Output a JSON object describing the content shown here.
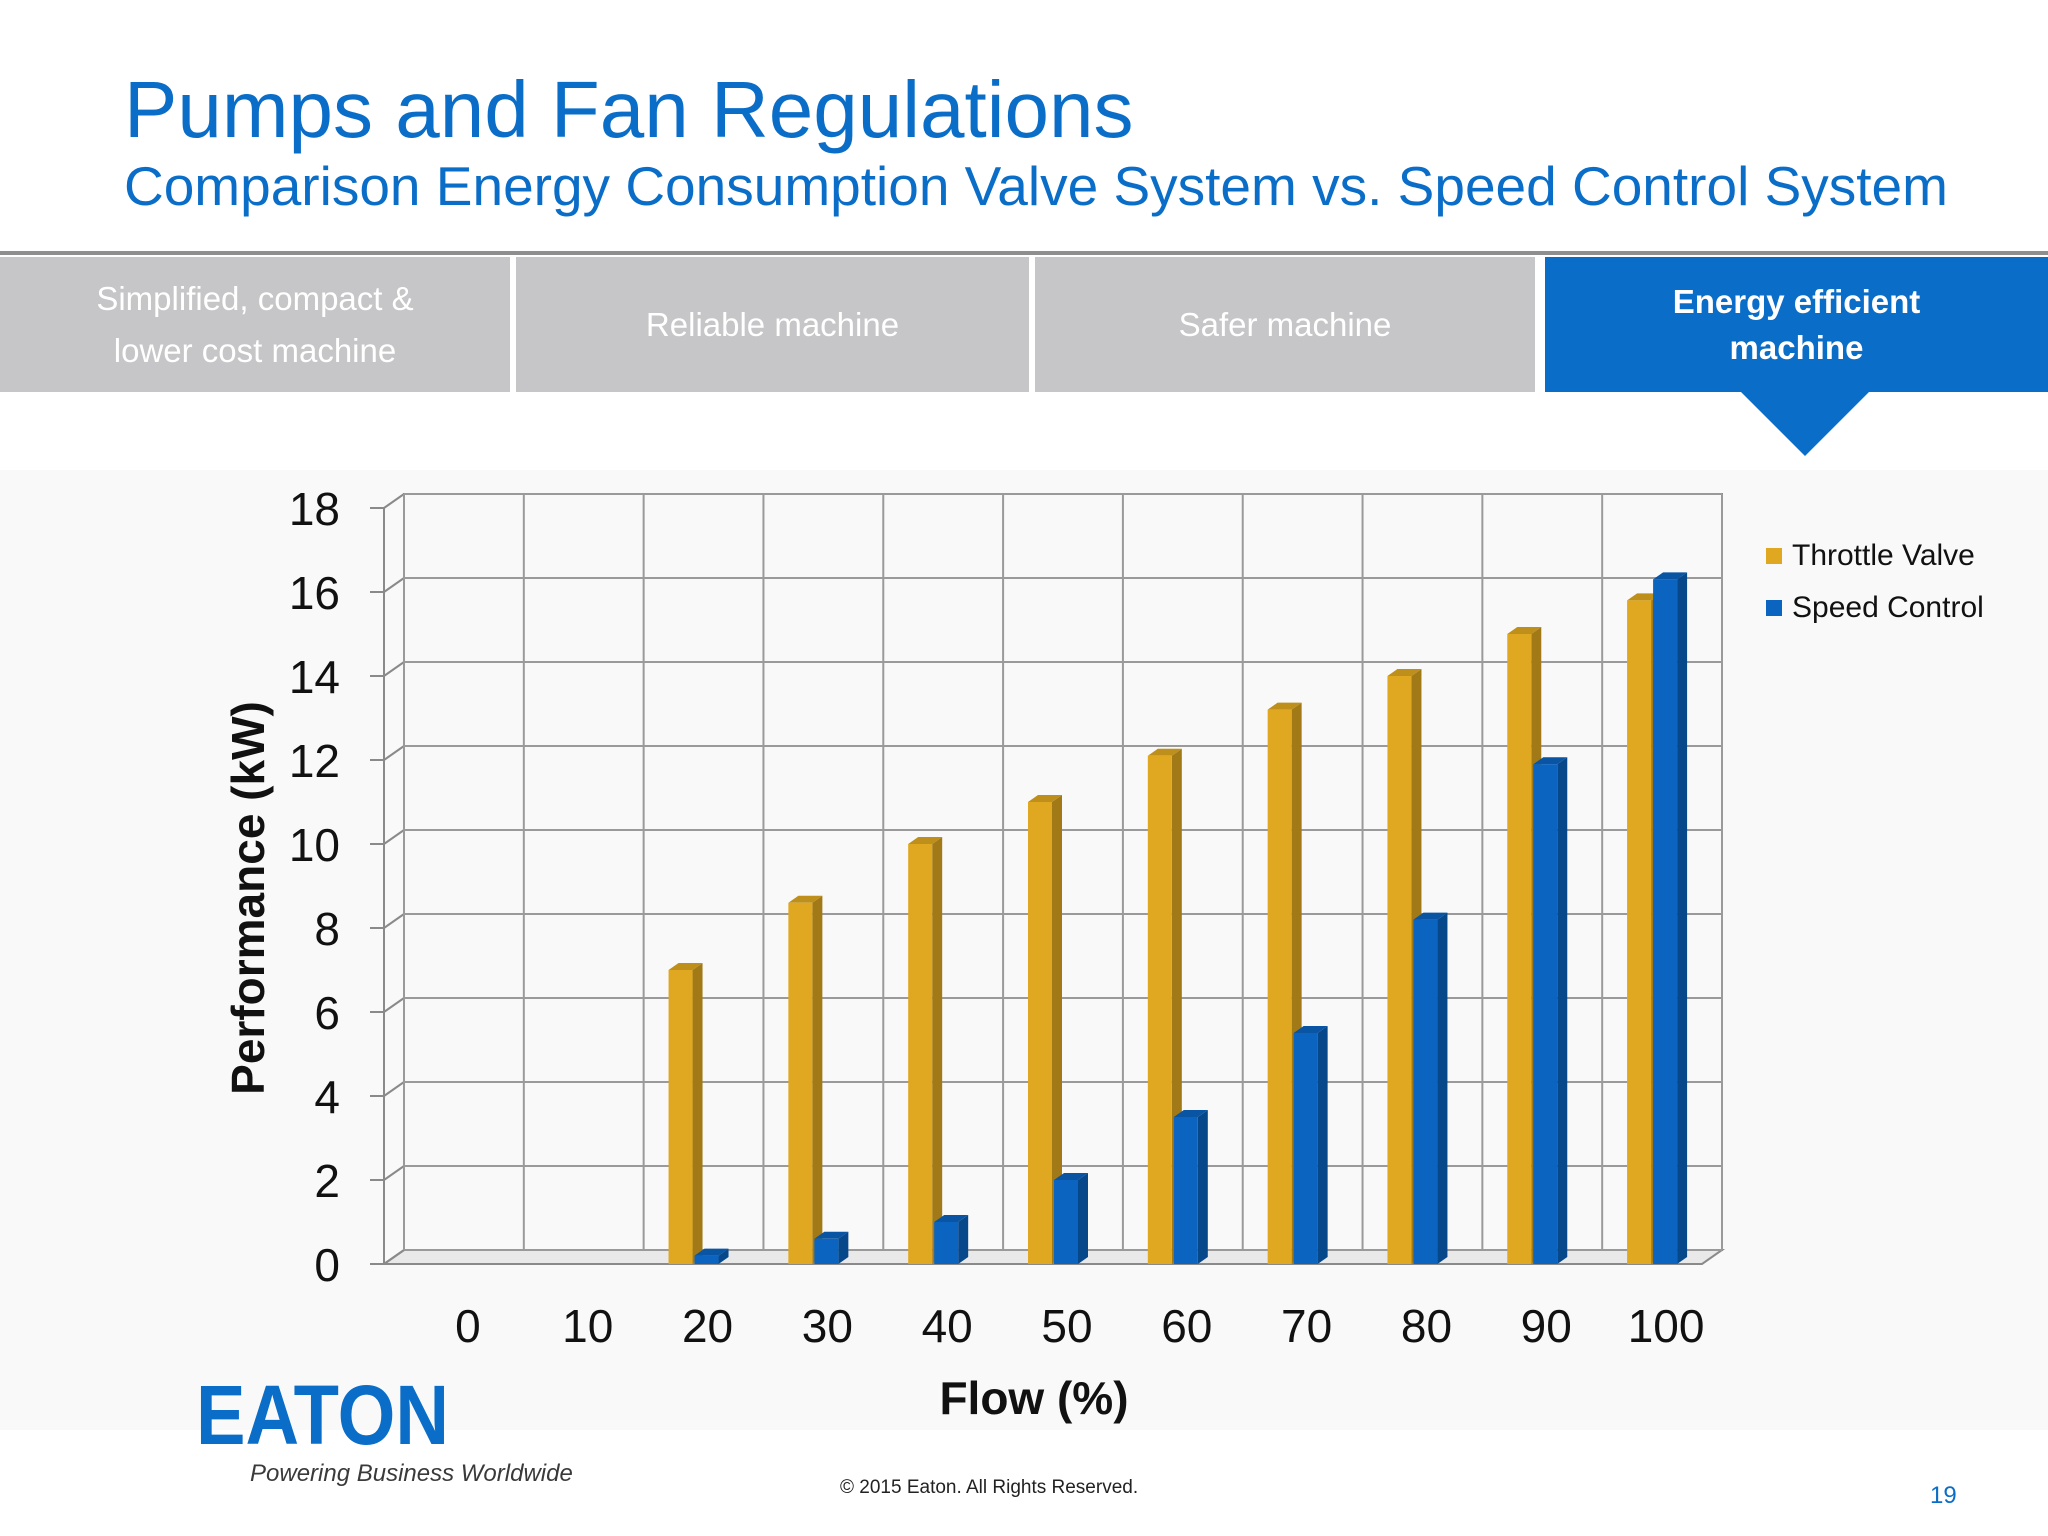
{
  "header": {
    "title": "Pumps and Fan Regulations",
    "subtitle": "Comparison Energy Consumption Valve System vs. Speed Control System"
  },
  "tabs": [
    {
      "line1": "Simplified, compact &",
      "line2": "lower cost machine",
      "active": false
    },
    {
      "line1": "Reliable machine",
      "line2": "",
      "active": false
    },
    {
      "line1": "Safer machine",
      "line2": "",
      "active": false
    },
    {
      "line1": "Energy efficient",
      "line2": "machine",
      "active": true
    }
  ],
  "chart_data": {
    "type": "bar",
    "style": "3d-clustered-column",
    "categories": [
      "0",
      "10",
      "20",
      "30",
      "40",
      "50",
      "60",
      "70",
      "80",
      "90",
      "100"
    ],
    "series": [
      {
        "name": "Throttle Valve",
        "color": "#e0a820",
        "values": [
          0,
          0,
          7,
          8.6,
          10,
          11,
          12.1,
          13.2,
          14,
          15,
          15.8
        ]
      },
      {
        "name": "Speed Control",
        "color": "#0a64c0",
        "values": [
          0,
          0,
          0.2,
          0.6,
          1,
          2,
          3.5,
          5.5,
          8.2,
          11.9,
          16.3
        ]
      }
    ],
    "title": "",
    "xlabel": "Flow (%)",
    "ylabel": "Performance (kW)",
    "ylim": [
      0,
      18
    ],
    "yticks": [
      "0",
      "2",
      "4",
      "6",
      "8",
      "10",
      "12",
      "14",
      "16",
      "18"
    ],
    "grid": true,
    "legend_position": "right"
  },
  "footer": {
    "logo": "EATON",
    "tagline": "Powering Business Worldwide",
    "copyright": "© 2015 Eaton. All Rights Reserved.",
    "page_number": "19"
  }
}
